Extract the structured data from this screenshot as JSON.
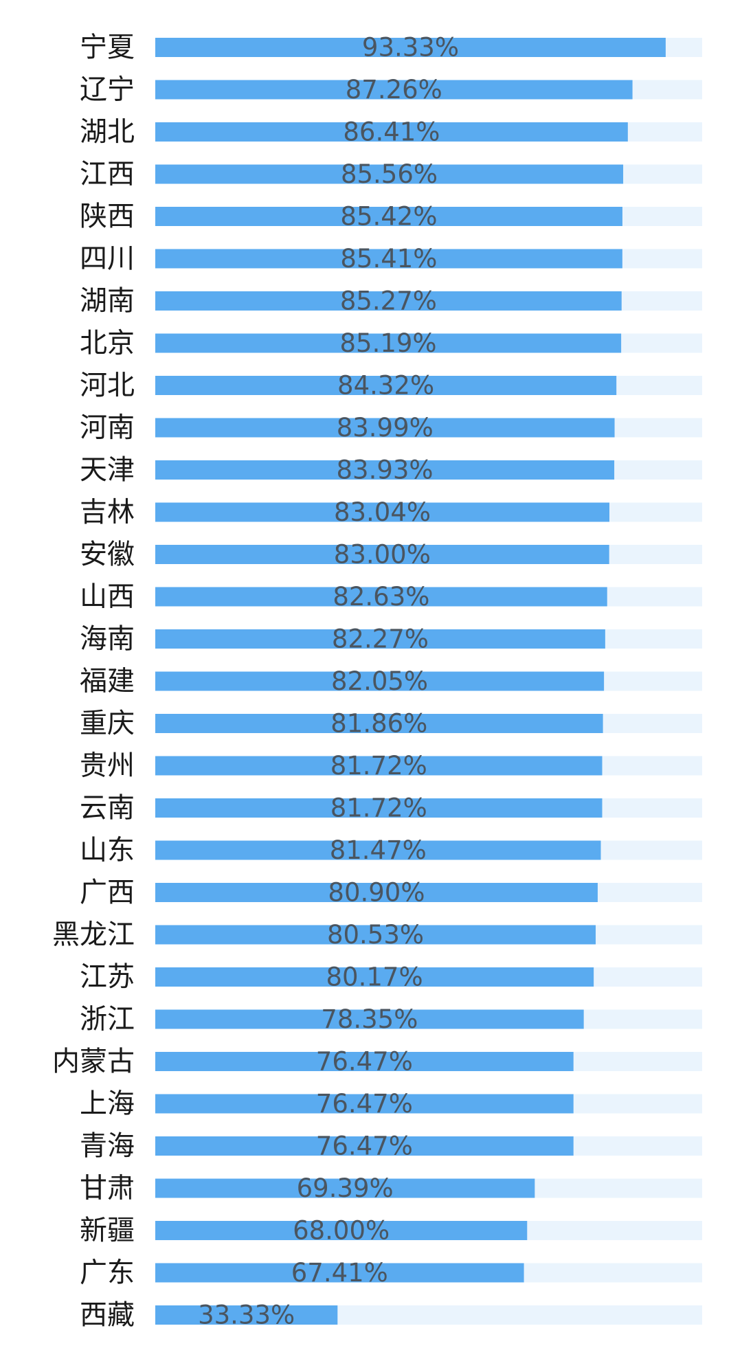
{
  "colors": {
    "bar": "#5aabf0",
    "track": "#eaf4fd",
    "label_text": "#1a1a1a",
    "value_text": "#4a5560",
    "background": "#ffffff"
  },
  "chart_data": {
    "type": "bar",
    "orientation": "horizontal",
    "value_format": "percent",
    "xlim": [
      0,
      100
    ],
    "grid": false,
    "legend": "none",
    "categories": [
      "宁夏",
      "辽宁",
      "湖北",
      "江西",
      "陕西",
      "四川",
      "湖南",
      "北京",
      "河北",
      "河南",
      "天津",
      "吉林",
      "安徽",
      "山西",
      "海南",
      "福建",
      "重庆",
      "贵州",
      "云南",
      "山东",
      "广西",
      "黑龙江",
      "江苏",
      "浙江",
      "内蒙古",
      "上海",
      "青海",
      "甘肃",
      "新疆",
      "广东",
      "西藏"
    ],
    "values": [
      93.33,
      87.26,
      86.41,
      85.56,
      85.42,
      85.41,
      85.27,
      85.19,
      84.32,
      83.99,
      83.93,
      83.04,
      83.0,
      82.63,
      82.27,
      82.05,
      81.86,
      81.72,
      81.72,
      81.47,
      80.9,
      80.53,
      80.17,
      78.35,
      76.47,
      76.47,
      76.47,
      69.39,
      68.0,
      67.41,
      33.33
    ],
    "value_labels": [
      "93.33%",
      "87.26%",
      "86.41%",
      "85.56%",
      "85.42%",
      "85.41%",
      "85.27%",
      "85.19%",
      "84.32%",
      "83.99%",
      "83.93%",
      "83.04%",
      "83.00%",
      "82.63%",
      "82.27%",
      "82.05%",
      "81.86%",
      "81.72%",
      "81.72%",
      "81.47%",
      "80.90%",
      "80.53%",
      "80.17%",
      "78.35%",
      "76.47%",
      "76.47%",
      "76.47%",
      "69.39%",
      "68.00%",
      "67.41%",
      "33.33%"
    ]
  }
}
